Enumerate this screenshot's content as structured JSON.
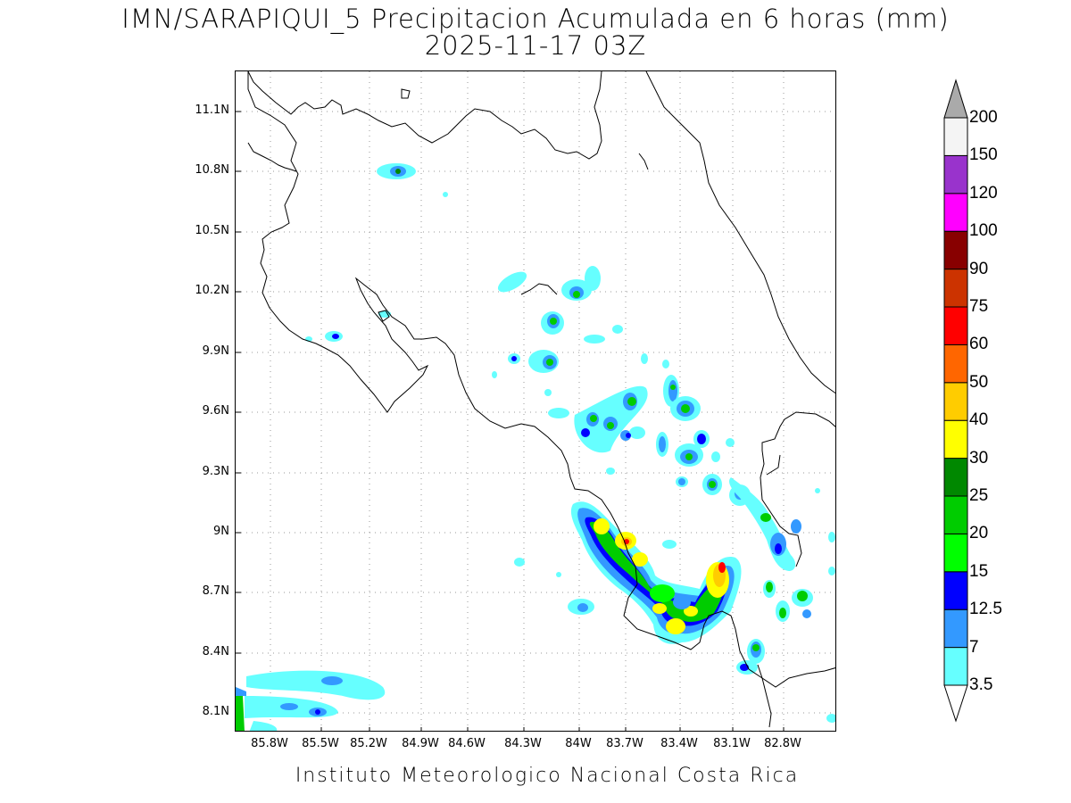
{
  "title": {
    "line1": "IMN/SARAPIQUI_5 Precipitacion Acumulada en 6 horas (mm)",
    "line2": "2025-11-17 03Z"
  },
  "footer": "Instituto Meteorologico Nacional Costa Rica",
  "map": {
    "lat_ticks": [
      "11.1N",
      "10.8N",
      "10.5N",
      "10.2N",
      "9.9N",
      "9.6N",
      "9.3N",
      "9N",
      "8.7N",
      "8.4N",
      "8.1N"
    ],
    "lon_ticks": [
      "85.8W",
      "85.5W",
      "85.2W",
      "84.9W",
      "84.6W",
      "84.3W",
      "84W",
      "83.7W",
      "83.4W",
      "83.1W",
      "82.8W"
    ],
    "lat_range": [
      "8.0N",
      "11.3N"
    ],
    "lon_range": [
      "86.0W",
      "82.75W"
    ],
    "grid": "dotted"
  },
  "legend": {
    "thresholds": [
      "3.5",
      "7",
      "12.5",
      "15",
      "20",
      "25",
      "30",
      "40",
      "50",
      "60",
      "75",
      "90",
      "100",
      "120",
      "150",
      "200"
    ],
    "colors": [
      "#66ffff",
      "#3399ff",
      "#0000ff",
      "#00ff00",
      "#00cc00",
      "#008800",
      "#ffff00",
      "#ffcc00",
      "#ff6600",
      "#ff0000",
      "#cc3300",
      "#880000",
      "#ff00ff",
      "#9933cc",
      "#f4f4f4"
    ],
    "under_color": "#ffffff",
    "over_color": "#aaaaaa"
  }
}
